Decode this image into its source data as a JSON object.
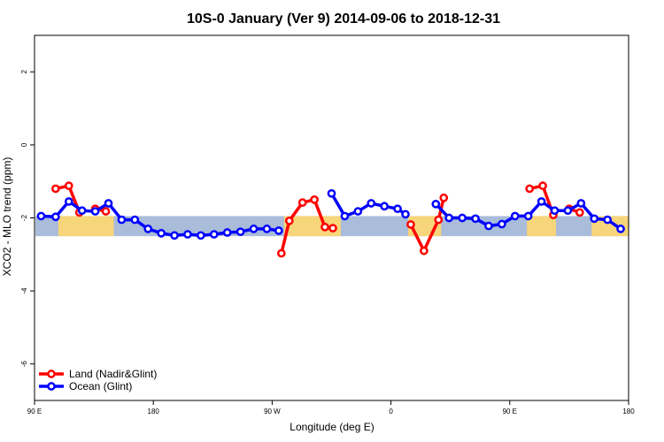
{
  "chart_data": {
    "type": "line",
    "title": "10S-0 January (Ver 9)   2014-09-06 to 2018-12-31",
    "xlabel": "Longitude (deg E)",
    "ylabel": "XCO2 - MLO trend (ppm)",
    "ylim": [
      -7,
      3
    ],
    "xlim": [
      90,
      540
    ],
    "x_ticks": [
      {
        "value": 90,
        "label": "90 E"
      },
      {
        "value": 180,
        "label": "180"
      },
      {
        "value": 270,
        "label": "90 W"
      },
      {
        "value": 360,
        "label": "0"
      },
      {
        "value": 450,
        "label": "90 E"
      },
      {
        "value": 540,
        "label": "180"
      }
    ],
    "y_ticks": [
      -6,
      -4,
      -2,
      0,
      2
    ],
    "background_band": {
      "y_range": [
        -2.5,
        -1.95
      ],
      "color": "#a9bcd9",
      "land_color": "#f7d57a"
    },
    "land_x_ranges": [
      [
        108,
        150
      ],
      [
        279,
        322
      ],
      [
        373,
        398
      ],
      [
        463,
        485
      ],
      [
        512,
        540
      ]
    ],
    "series": [
      {
        "name": "Land (Nadir&Glint)",
        "color": "#ff0000",
        "segments": [
          [
            [
              106,
              -1.2
            ],
            [
              116,
              -1.12
            ],
            [
              124,
              -1.85
            ]
          ],
          [
            [
              136,
              -1.75
            ],
            [
              144,
              -1.82
            ]
          ],
          [
            [
              277,
              -2.97
            ],
            [
              283,
              -2.08
            ],
            [
              293,
              -1.58
            ],
            [
              302,
              -1.5
            ],
            [
              310,
              -2.25
            ],
            [
              316,
              -2.28
            ]
          ],
          [
            [
              375,
              -2.18
            ],
            [
              385,
              -2.9
            ],
            [
              396,
              -2.05
            ],
            [
              400,
              -1.45
            ]
          ],
          [
            [
              465,
              -1.2
            ],
            [
              475,
              -1.12
            ],
            [
              483,
              -1.92
            ]
          ],
          [
            [
              495,
              -1.75
            ],
            [
              503,
              -1.85
            ]
          ]
        ]
      },
      {
        "name": "Ocean (Glint)",
        "color": "#0000ff",
        "segments": [
          [
            [
              95,
              -1.95
            ],
            [
              106,
              -1.97
            ],
            [
              116,
              -1.55
            ],
            [
              126,
              -1.8
            ],
            [
              136,
              -1.82
            ],
            [
              146,
              -1.6
            ],
            [
              156,
              -2.05
            ],
            [
              166,
              -2.05
            ],
            [
              176,
              -2.3
            ],
            [
              186,
              -2.42
            ],
            [
              196,
              -2.48
            ],
            [
              206,
              -2.45
            ],
            [
              216,
              -2.48
            ],
            [
              226,
              -2.45
            ],
            [
              236,
              -2.4
            ],
            [
              246,
              -2.38
            ],
            [
              256,
              -2.3
            ],
            [
              266,
              -2.3
            ],
            [
              275,
              -2.35
            ]
          ],
          [
            [
              315,
              -1.33
            ],
            [
              325,
              -1.95
            ],
            [
              335,
              -1.82
            ],
            [
              345,
              -1.6
            ],
            [
              355,
              -1.68
            ],
            [
              365,
              -1.75
            ],
            [
              371,
              -1.9
            ]
          ],
          [
            [
              394,
              -1.62
            ],
            [
              404,
              -2.0
            ],
            [
              414,
              -2.0
            ],
            [
              424,
              -2.02
            ],
            [
              434,
              -2.22
            ],
            [
              444,
              -2.17
            ],
            [
              454,
              -1.95
            ],
            [
              464,
              -1.95
            ],
            [
              474,
              -1.55
            ],
            [
              484,
              -1.8
            ],
            [
              494,
              -1.8
            ],
            [
              504,
              -1.6
            ],
            [
              514,
              -2.02
            ],
            [
              524,
              -2.05
            ],
            [
              534,
              -2.3
            ]
          ]
        ]
      }
    ],
    "legend": {
      "position": "bottom-left"
    }
  }
}
